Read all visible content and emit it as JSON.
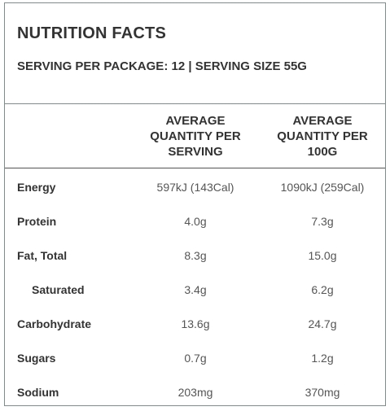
{
  "title": "NUTRITION FACTS",
  "serving_info": "SERVING PER PACKAGE: 12 | SERVING SIZE 55G",
  "columns": {
    "per_serving": "AVERAGE QUANTITY PER SERVING",
    "per_100g": "AVERAGE QUANTITY PER 100G"
  },
  "nutrients": [
    {
      "name": "Energy",
      "per_serving": "597kJ (143Cal)",
      "per_100g": "1090kJ (259Cal)"
    },
    {
      "name": "Protein",
      "per_serving": "4.0g",
      "per_100g": "7.3g"
    },
    {
      "name": "Fat, Total",
      "per_serving": "8.3g",
      "per_100g": "15.0g"
    },
    {
      "name": "Saturated",
      "per_serving": "3.4g",
      "per_100g": "6.2g"
    },
    {
      "name": "Carbohydrate",
      "per_serving": "13.6g",
      "per_100g": "24.7g"
    },
    {
      "name": "Sugars",
      "per_serving": "0.7g",
      "per_100g": "1.2g"
    },
    {
      "name": "Sodium",
      "per_serving": "203mg",
      "per_100g": "370mg"
    }
  ]
}
